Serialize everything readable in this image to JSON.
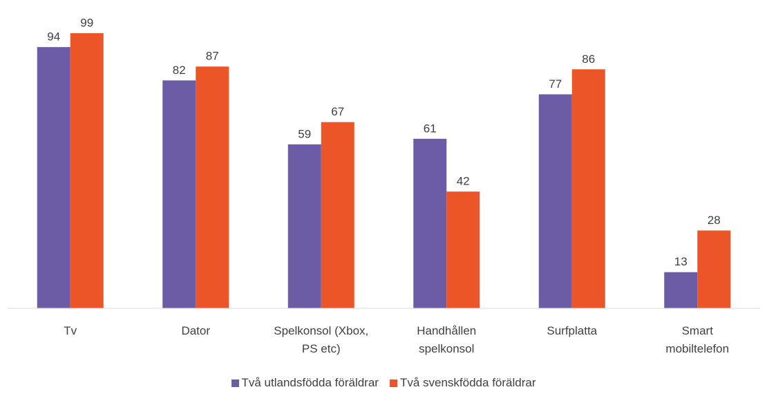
{
  "chart_data": {
    "type": "bar",
    "categories": [
      "Tv",
      "Dator",
      "Spelkonsol (Xbox,\nPS etc)",
      "Handhållen\nspelkonsol",
      "Surfplatta",
      "Smart\nmobiltelefon"
    ],
    "series": [
      {
        "name": "Två utlandsfödda föräldrar",
        "color": "#6b5ca5",
        "values": [
          94,
          82,
          59,
          61,
          77,
          13
        ]
      },
      {
        "name": "Två svenskfödda föräldrar",
        "color": "#ec5528",
        "values": [
          99,
          87,
          67,
          42,
          86,
          28
        ]
      }
    ],
    "ylim": [
      0,
      100
    ],
    "legend": "bottom"
  }
}
